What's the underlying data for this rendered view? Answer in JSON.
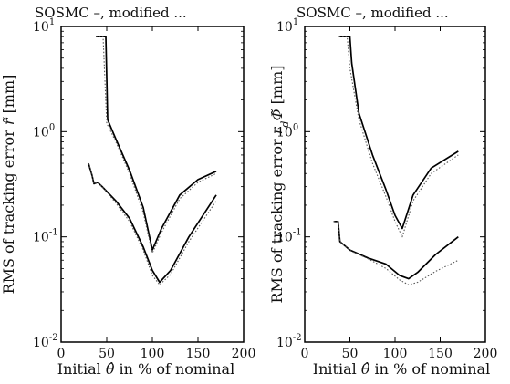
{
  "chart_data": [
    {
      "type": "line",
      "title": "SOSMC –, modified ...",
      "xlabel": "Initial θ̂ in % of nominal",
      "ylabel": "RMS of tracking error r̃ [mm]",
      "xlim": [
        0,
        200
      ],
      "ylim": [
        0.01,
        10
      ],
      "yscale": "log",
      "grid": false,
      "xticks": [
        "0",
        "50",
        "100",
        "150",
        "200"
      ],
      "yticks": [
        {
          "value": 10,
          "base": "10",
          "exp": "1"
        },
        {
          "value": 1,
          "base": "10",
          "exp": "0"
        },
        {
          "value": 0.1,
          "base": "10",
          "exp": "-1"
        },
        {
          "value": 0.01,
          "base": "10",
          "exp": "-2"
        }
      ],
      "series": [
        {
          "style": "solid",
          "x": [
            38,
            49,
            51,
            60,
            75,
            90,
            100,
            110,
            130,
            150,
            170
          ],
          "y": [
            8,
            8,
            1.3,
            0.85,
            0.43,
            0.19,
            0.075,
            0.12,
            0.25,
            0.35,
            0.42
          ]
        },
        {
          "style": "dotted",
          "x": [
            38,
            46,
            50,
            60,
            75,
            90,
            100,
            110,
            130,
            150,
            170
          ],
          "y": [
            8,
            8,
            1.2,
            0.8,
            0.4,
            0.17,
            0.07,
            0.11,
            0.23,
            0.33,
            0.4
          ]
        },
        {
          "style": "solid",
          "x": [
            30,
            34,
            36,
            40,
            45,
            60,
            75,
            90,
            100,
            108,
            120,
            140,
            170
          ],
          "y": [
            0.5,
            0.38,
            0.32,
            0.33,
            0.3,
            0.22,
            0.15,
            0.08,
            0.048,
            0.037,
            0.048,
            0.1,
            0.25
          ]
        },
        {
          "style": "dotted",
          "x": [
            30,
            34,
            36,
            40,
            45,
            60,
            75,
            90,
            100,
            108,
            120,
            140,
            170
          ],
          "y": [
            0.5,
            0.38,
            0.32,
            0.33,
            0.3,
            0.21,
            0.14,
            0.075,
            0.043,
            0.035,
            0.044,
            0.09,
            0.22
          ]
        }
      ]
    },
    {
      "type": "line",
      "title": "SOSMC –, modified ...",
      "xlabel": "Initial θ̂ in % of nominal",
      "ylabel": "RMS of tracking error r_d Φ̃ [mm]",
      "xlim": [
        0,
        200
      ],
      "ylim": [
        0.01,
        10
      ],
      "yscale": "log",
      "grid": false,
      "xticks": [
        "0",
        "50",
        "100",
        "150",
        "200"
      ],
      "yticks": [
        {
          "value": 10,
          "base": "10",
          "exp": "1"
        },
        {
          "value": 1,
          "base": "10",
          "exp": "0"
        },
        {
          "value": 0.1,
          "base": "10",
          "exp": "-1"
        },
        {
          "value": 0.01,
          "base": "10",
          "exp": "-2"
        }
      ],
      "series": [
        {
          "style": "solid",
          "x": [
            38,
            50,
            52,
            60,
            75,
            90,
            100,
            108,
            120,
            140,
            170
          ],
          "y": [
            8,
            8,
            4.5,
            1.5,
            0.6,
            0.28,
            0.16,
            0.12,
            0.25,
            0.45,
            0.65
          ]
        },
        {
          "style": "dotted",
          "x": [
            38,
            47,
            50,
            60,
            75,
            90,
            100,
            108,
            120,
            140,
            170
          ],
          "y": [
            8,
            8,
            4,
            1.3,
            0.5,
            0.24,
            0.14,
            0.1,
            0.22,
            0.4,
            0.6
          ]
        },
        {
          "style": "solid",
          "x": [
            32,
            37,
            39,
            50,
            70,
            90,
            105,
            115,
            125,
            145,
            170
          ],
          "y": [
            0.14,
            0.14,
            0.09,
            0.075,
            0.063,
            0.055,
            0.043,
            0.04,
            0.046,
            0.068,
            0.1
          ]
        },
        {
          "style": "dotted",
          "x": [
            32,
            37,
            39,
            50,
            70,
            90,
            105,
            115,
            125,
            145,
            170
          ],
          "y": [
            0.14,
            0.14,
            0.09,
            0.074,
            0.062,
            0.05,
            0.039,
            0.035,
            0.037,
            0.047,
            0.06
          ]
        }
      ]
    }
  ]
}
